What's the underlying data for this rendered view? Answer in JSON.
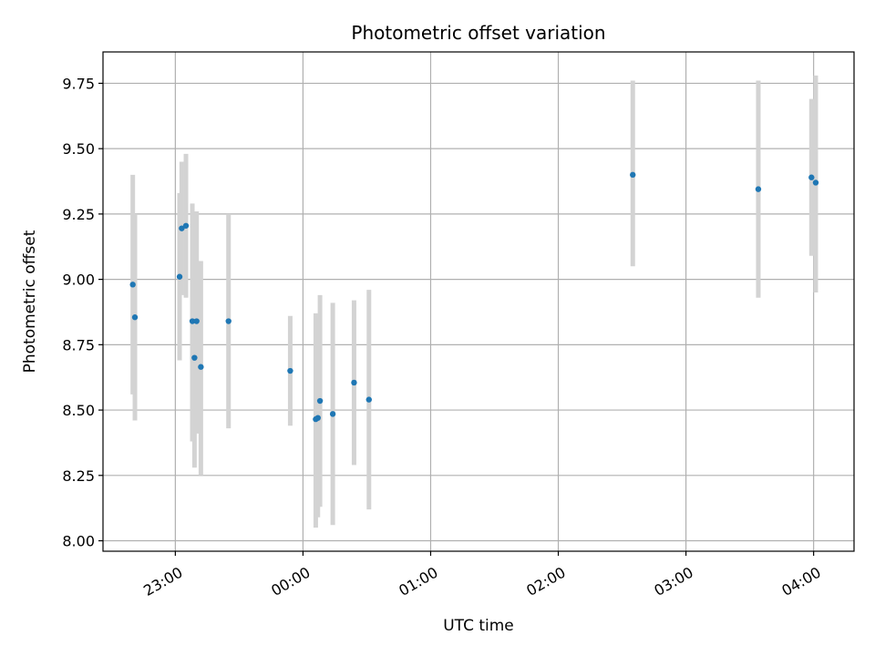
{
  "chart_data": {
    "type": "scatter",
    "title": "Photometric offset variation",
    "xlabel": "UTC time",
    "ylabel": "Photometric offset",
    "x_tick_labels": [
      "23:00",
      "00:00",
      "01:00",
      "02:00",
      "03:00",
      "04:00"
    ],
    "x_tick_hours": [
      23,
      24,
      25,
      26,
      27,
      28
    ],
    "y_tick_labels": [
      "8.00",
      "8.25",
      "8.50",
      "8.75",
      "9.00",
      "9.25",
      "9.50",
      "9.75"
    ],
    "xlim": [
      "22:26",
      "04:19"
    ],
    "ylim": [
      7.96,
      9.87
    ],
    "grid": true,
    "colors": {
      "point": "#1f77b4",
      "errorbar": "#d3d3d3",
      "grid": "#b0b0b0"
    },
    "points": [
      {
        "time": "22:40",
        "y": 8.98,
        "lo": 8.56,
        "hi": 9.4
      },
      {
        "time": "22:41",
        "y": 8.855,
        "lo": 8.46,
        "hi": 9.25
      },
      {
        "time": "23:02",
        "y": 9.01,
        "lo": 8.69,
        "hi": 9.33
      },
      {
        "time": "23:03",
        "y": 9.195,
        "lo": 8.94,
        "hi": 9.45
      },
      {
        "time": "23:05",
        "y": 9.205,
        "lo": 8.93,
        "hi": 9.48
      },
      {
        "time": "23:08",
        "y": 8.84,
        "lo": 8.38,
        "hi": 9.29
      },
      {
        "time": "23:09",
        "y": 8.7,
        "lo": 8.28,
        "hi": 9.11
      },
      {
        "time": "23:10",
        "y": 8.84,
        "lo": 8.41,
        "hi": 9.26
      },
      {
        "time": "23:12",
        "y": 8.665,
        "lo": 8.25,
        "hi": 9.07
      },
      {
        "time": "23:25",
        "y": 8.84,
        "lo": 8.43,
        "hi": 9.25
      },
      {
        "time": "23:54",
        "y": 8.65,
        "lo": 8.44,
        "hi": 8.86
      },
      {
        "time": "00:06",
        "y": 8.465,
        "lo": 8.05,
        "hi": 8.87
      },
      {
        "time": "00:07",
        "y": 8.47,
        "lo": 8.09,
        "hi": 8.85
      },
      {
        "time": "00:08",
        "y": 8.535,
        "lo": 8.13,
        "hi": 8.94
      },
      {
        "time": "00:14",
        "y": 8.485,
        "lo": 8.06,
        "hi": 8.91
      },
      {
        "time": "00:24",
        "y": 8.605,
        "lo": 8.29,
        "hi": 8.92
      },
      {
        "time": "00:31",
        "y": 8.54,
        "lo": 8.12,
        "hi": 8.96
      },
      {
        "time": "02:35",
        "y": 9.4,
        "lo": 9.05,
        "hi": 9.76
      },
      {
        "time": "03:34",
        "y": 9.345,
        "lo": 8.93,
        "hi": 9.76
      },
      {
        "time": "03:59",
        "y": 9.39,
        "lo": 9.09,
        "hi": 9.69
      },
      {
        "time": "04:01",
        "y": 9.37,
        "lo": 8.95,
        "hi": 9.78
      }
    ]
  }
}
